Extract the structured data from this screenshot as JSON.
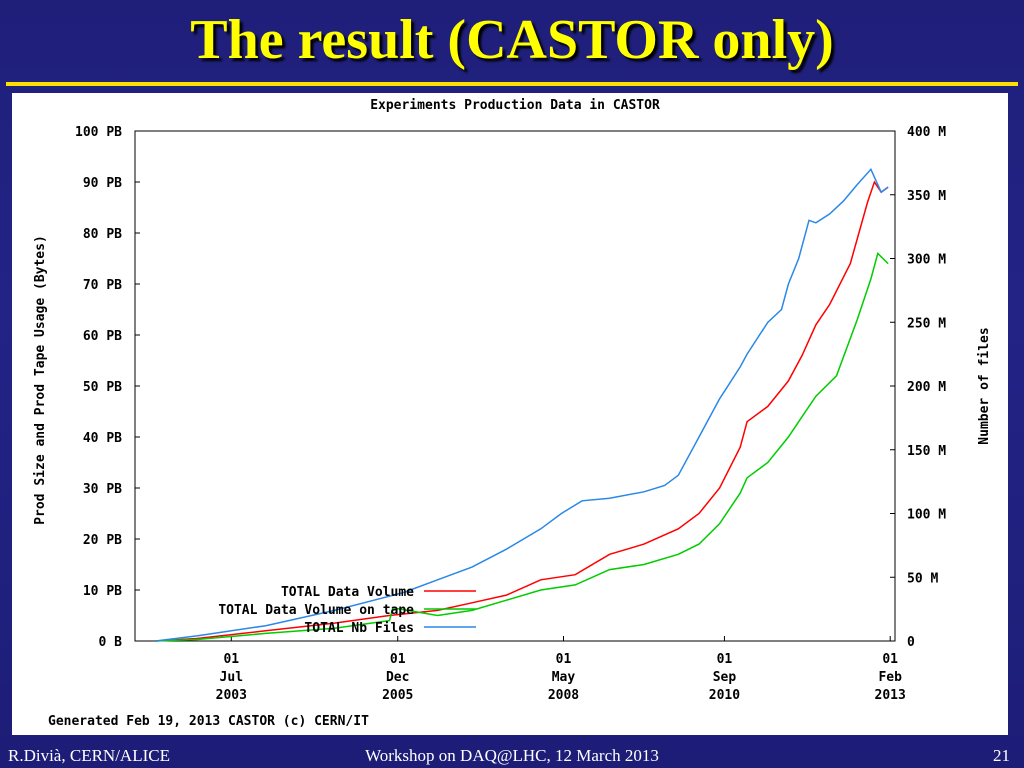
{
  "slide": {
    "title": "The result (CASTOR only)",
    "footer_left": "R.Divià, CERN/ALICE",
    "footer_center": "Workshop on DAQ@LHC, 12 March 2013",
    "page_number": "21"
  },
  "chart_data": {
    "type": "line",
    "title": "Experiments Production Data in CASTOR",
    "ylabel": "Prod Size and Prod Tape Usage (Bytes)",
    "y2label": "Number of files",
    "footnote": "Generated Feb 19, 2013 CASTOR (c) CERN/IT",
    "ylim": [
      0,
      100
    ],
    "y2lim": [
      0,
      400
    ],
    "xlim": [
      2002.1,
      2013.15
    ],
    "y_ticks": [
      {
        "value": 0,
        "label": "0 B"
      },
      {
        "value": 10,
        "label": "10 PB"
      },
      {
        "value": 20,
        "label": "20 PB"
      },
      {
        "value": 30,
        "label": "30 PB"
      },
      {
        "value": 40,
        "label": "40 PB"
      },
      {
        "value": 50,
        "label": "50 PB"
      },
      {
        "value": 60,
        "label": "60 PB"
      },
      {
        "value": 70,
        "label": "70 PB"
      },
      {
        "value": 80,
        "label": "80 PB"
      },
      {
        "value": 90,
        "label": "90 PB"
      },
      {
        "value": 100,
        "label": "100 PB"
      }
    ],
    "y2_ticks": [
      {
        "value": 0,
        "label": "0"
      },
      {
        "value": 50,
        "label": "50 M"
      },
      {
        "value": 100,
        "label": "100 M"
      },
      {
        "value": 150,
        "label": "150 M"
      },
      {
        "value": 200,
        "label": "200 M"
      },
      {
        "value": 250,
        "label": "250 M"
      },
      {
        "value": 300,
        "label": "300 M"
      },
      {
        "value": 350,
        "label": "350 M"
      },
      {
        "value": 400,
        "label": "400 M"
      }
    ],
    "x_ticks": [
      {
        "value": 2003.5,
        "lines": [
          "01",
          "Jul",
          "2003"
        ]
      },
      {
        "value": 2005.92,
        "lines": [
          "01",
          "Dec",
          "2005"
        ]
      },
      {
        "value": 2008.33,
        "lines": [
          "01",
          "May",
          "2008"
        ]
      },
      {
        "value": 2010.67,
        "lines": [
          "01",
          "Sep",
          "2010"
        ]
      },
      {
        "value": 2013.08,
        "lines": [
          "01",
          "Feb",
          "2013"
        ]
      }
    ],
    "series": [
      {
        "name": "TOTAL Data Volume",
        "color": "#ff0000",
        "axis": "left",
        "x": [
          2002.4,
          2003.0,
          2004.0,
          2005.0,
          2005.8,
          2006.5,
          2007.0,
          2007.5,
          2008.0,
          2008.5,
          2009.0,
          2009.5,
          2010.0,
          2010.3,
          2010.6,
          2010.9,
          2011.0,
          2011.3,
          2011.6,
          2011.8,
          2012.0,
          2012.2,
          2012.5,
          2012.75,
          2012.85,
          2012.95,
          2013.05
        ],
        "y": [
          0,
          0.5,
          2,
          3.5,
          5,
          6,
          7.5,
          9,
          12,
          13,
          17,
          19,
          22,
          25,
          30,
          38,
          43,
          46,
          51,
          56,
          62,
          66,
          74,
          86,
          90,
          88,
          89
        ]
      },
      {
        "name": "TOTAL Data Volume on tape",
        "color": "#00cc00",
        "axis": "left",
        "x": [
          2002.4,
          2003.0,
          2004.0,
          2005.0,
          2005.8,
          2005.85,
          2006.5,
          2007.0,
          2007.5,
          2008.0,
          2008.5,
          2009.0,
          2009.5,
          2010.0,
          2010.3,
          2010.6,
          2010.9,
          2011.0,
          2011.3,
          2011.6,
          2011.8,
          2012.0,
          2012.3,
          2012.6,
          2012.8,
          2012.9,
          2013.05
        ],
        "y": [
          0,
          0.3,
          1.5,
          2.5,
          4,
          6.5,
          5,
          6,
          8,
          10,
          11,
          14,
          15,
          17,
          19,
          23,
          29,
          32,
          35,
          40,
          44,
          48,
          52,
          63,
          71,
          76,
          74
        ]
      },
      {
        "name": "TOTAL Nb Files",
        "color": "#2a88e8",
        "axis": "right",
        "x": [
          2002.4,
          2003.0,
          2004.0,
          2005.0,
          2006.0,
          2006.5,
          2007.0,
          2007.5,
          2008.0,
          2008.3,
          2008.6,
          2009.0,
          2009.5,
          2009.8,
          2010.0,
          2010.3,
          2010.6,
          2010.9,
          2011.0,
          2011.3,
          2011.5,
          2011.6,
          2011.75,
          2011.9,
          2012.0,
          2012.2,
          2012.4,
          2012.6,
          2012.8,
          2012.95,
          2013.05
        ],
        "y": [
          0,
          4,
          12,
          24,
          38,
          48,
          58,
          72,
          88,
          100,
          110,
          112,
          117,
          122,
          130,
          160,
          190,
          215,
          225,
          250,
          260,
          280,
          300,
          330,
          328,
          335,
          345,
          358,
          370,
          352,
          356
        ]
      }
    ],
    "legend": {
      "position": "bottom-left",
      "entries": [
        "TOTAL Data Volume",
        "TOTAL Data Volume on tape",
        "TOTAL Nb Files"
      ]
    },
    "grid": false
  }
}
